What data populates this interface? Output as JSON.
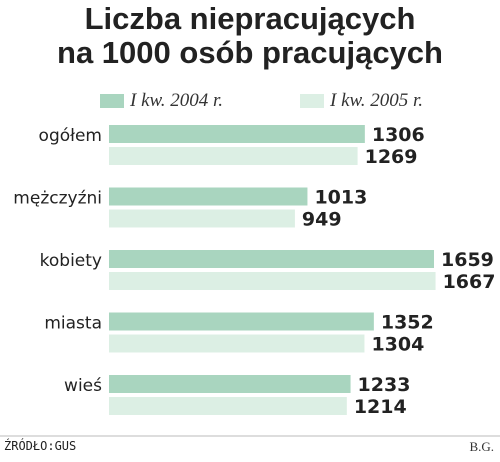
{
  "title_line1": "Liczba niepracujących",
  "title_line2": "na 1000 osób pracujących",
  "source": "ŹRÓDŁO:GUS",
  "author": "B.G.",
  "colors": {
    "series_2004": "#a9d5bf",
    "series_2005": "#dcefe4"
  },
  "chart_data": {
    "type": "bar",
    "orientation": "horizontal",
    "title": "Liczba niepracujących na 1000 osób pracujących",
    "categories": [
      "ogółem",
      "mężczyźni",
      "kobiety",
      "miasta",
      "wieś"
    ],
    "series": [
      {
        "name": "I kw. 2004 r.",
        "values": [
          1306,
          1013,
          1659,
          1352,
          1233
        ]
      },
      {
        "name": "I kw. 2005 r.",
        "values": [
          1269,
          949,
          1667,
          1304,
          1214
        ]
      }
    ],
    "legend_position": "top",
    "grid": false
  }
}
